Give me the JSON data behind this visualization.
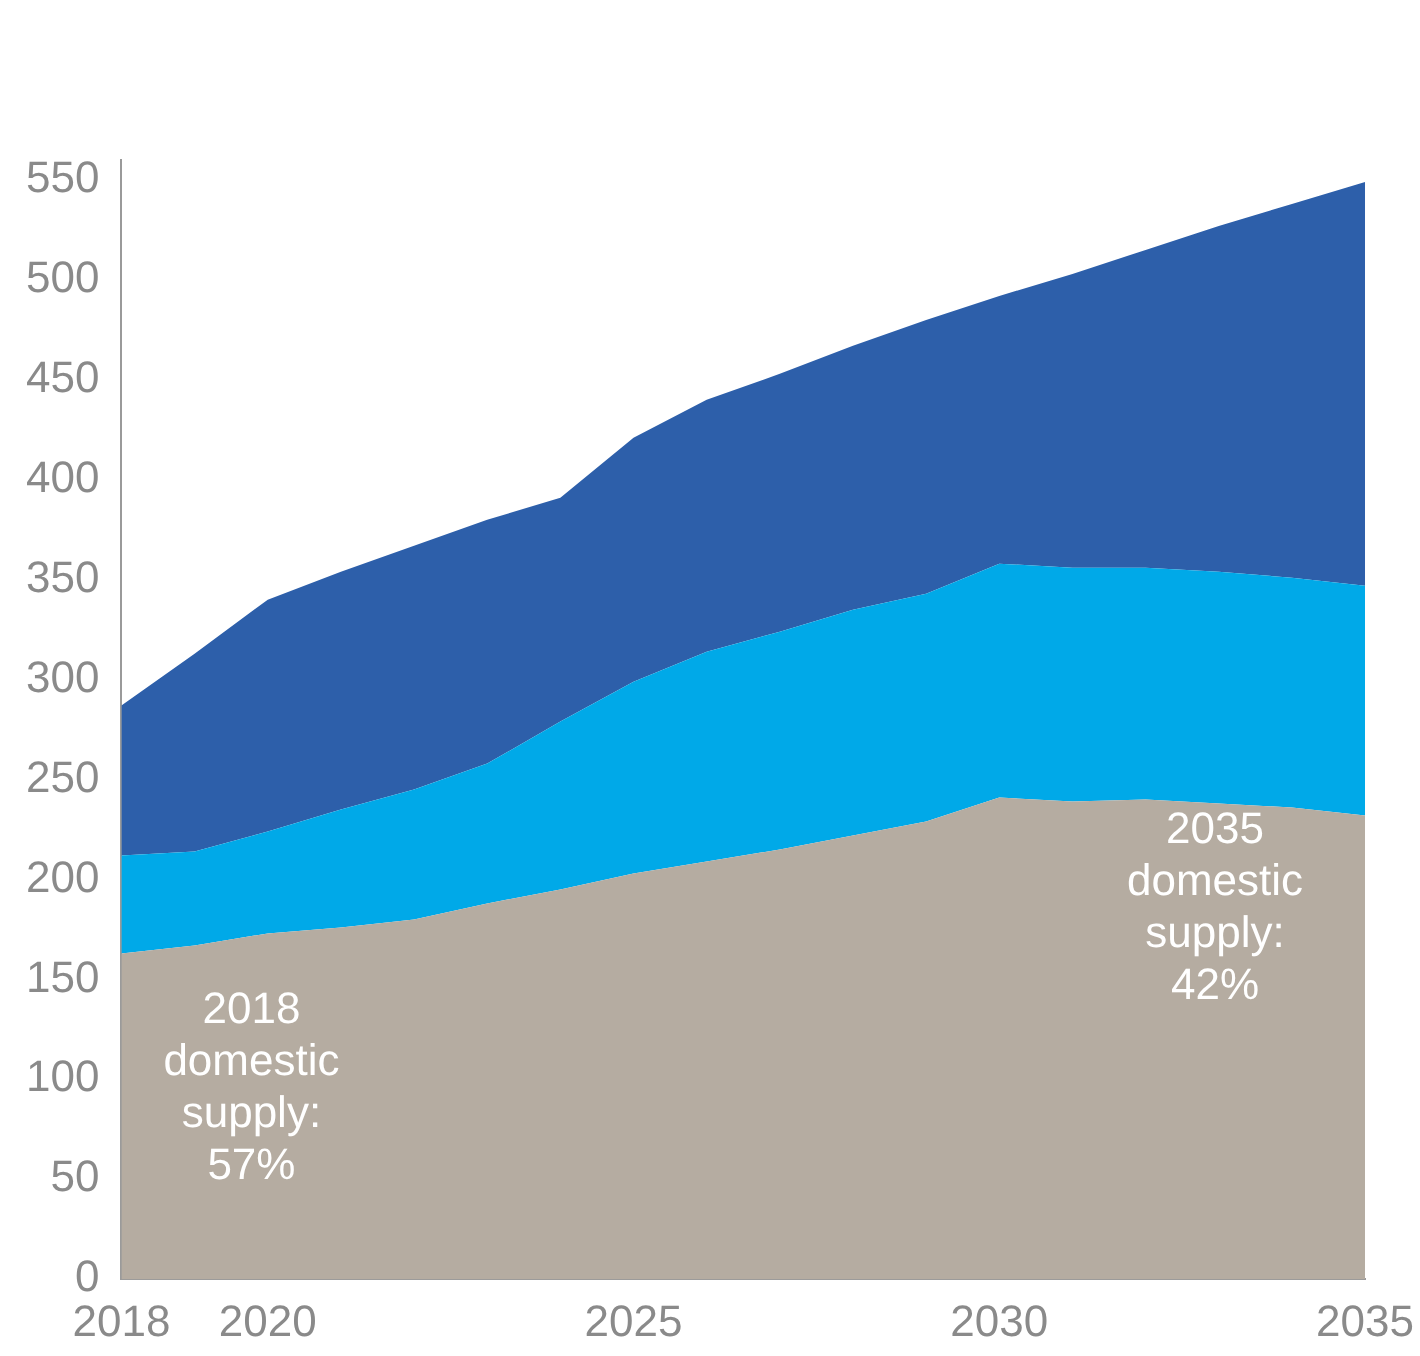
{
  "chart_data": {
    "type": "area",
    "stacked": true,
    "x": [
      2018,
      2019,
      2020,
      2021,
      2022,
      2023,
      2024,
      2025,
      2026,
      2027,
      2028,
      2029,
      2030,
      2031,
      2032,
      2033,
      2034,
      2035
    ],
    "series": [
      {
        "color": "#b5aca1",
        "values": [
          163,
          167,
          173,
          176,
          180,
          188,
          195,
          203,
          209,
          215,
          222,
          229,
          241,
          239,
          240,
          238,
          236,
          232
        ]
      },
      {
        "color": "#00a9e8",
        "values": [
          49,
          47,
          51,
          59,
          65,
          70,
          84,
          96,
          105,
          109,
          113,
          114,
          117,
          117,
          116,
          116,
          115,
          115
        ]
      },
      {
        "color": "#2d5faa",
        "values": [
          75,
          99,
          116,
          119,
          122,
          122,
          112,
          122,
          126,
          129,
          132,
          137,
          134,
          147,
          159,
          173,
          187,
          202
        ]
      }
    ],
    "xlim": [
      2018,
      2035
    ],
    "xticks": [
      2018,
      2020,
      2025,
      2030,
      2035
    ],
    "ylim": [
      0,
      560
    ],
    "yticks": [
      0,
      50,
      100,
      150,
      200,
      250,
      300,
      350,
      400,
      450,
      500,
      550
    ],
    "grid": false,
    "legend": false,
    "annotations": [
      "2018\ndomestic\nsupply:\n57%",
      "2035\ndomestic\nsupply:\n42%"
    ]
  }
}
